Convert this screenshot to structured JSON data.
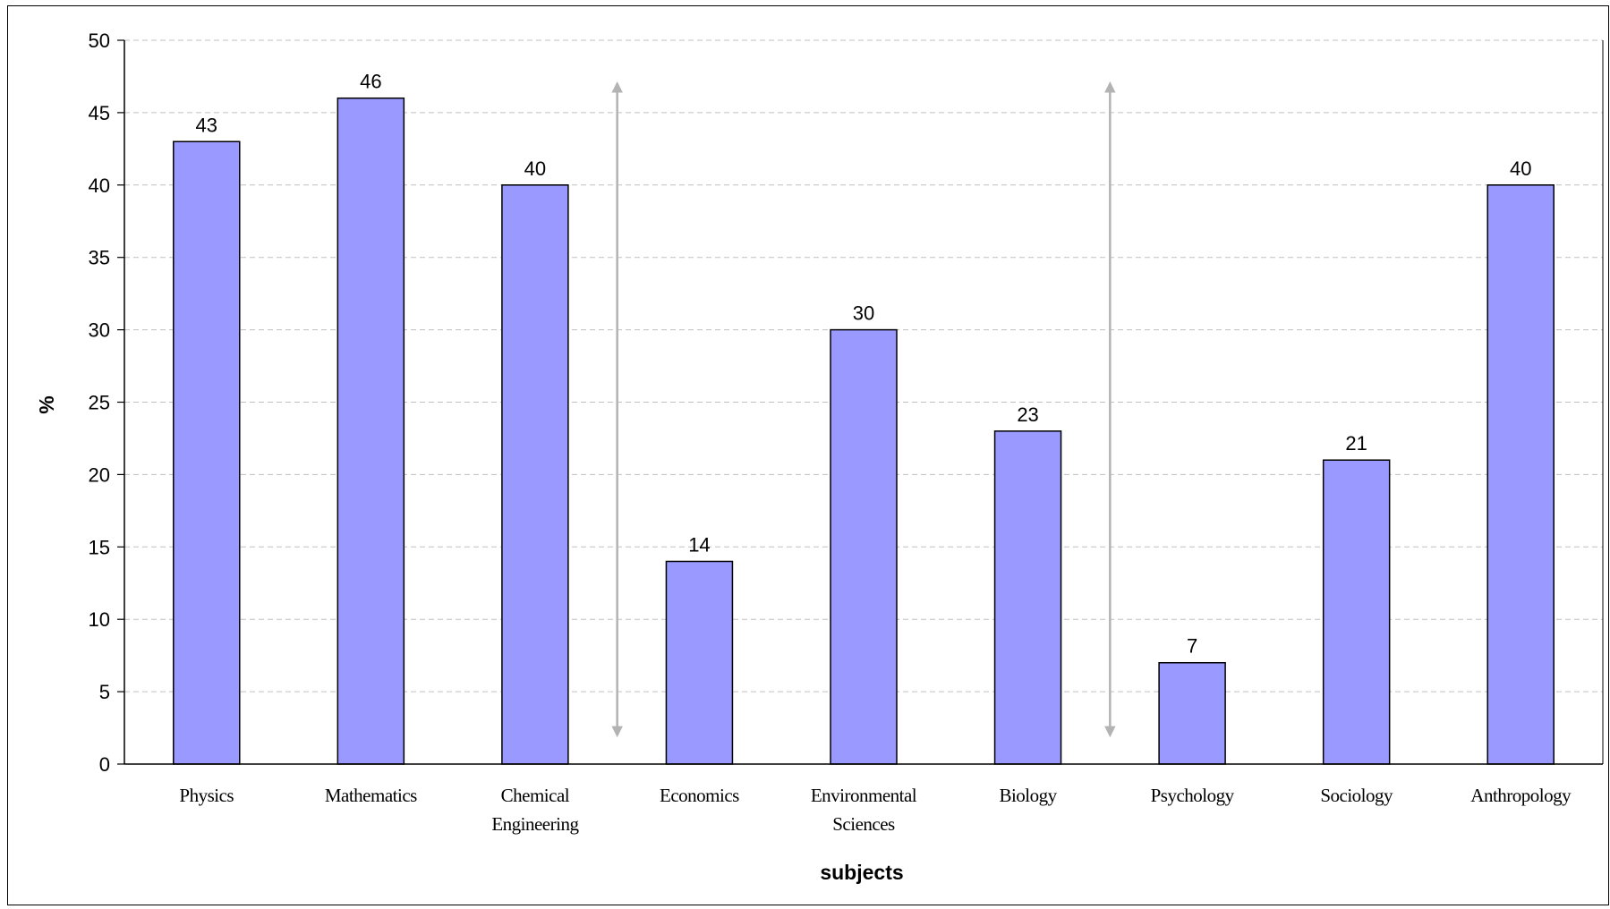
{
  "chart_data": {
    "type": "bar",
    "categories": [
      "Physics",
      "Mathematics",
      "Chemical Engineering",
      "Economics",
      "Environmental Sciences",
      "Biology",
      "Psychology",
      "Sociology",
      "Anthropology"
    ],
    "category_lines": [
      [
        "Physics"
      ],
      [
        "Mathematics"
      ],
      [
        "Chemical",
        "Engineering"
      ],
      [
        "Economics"
      ],
      [
        "Environmental",
        "Sciences"
      ],
      [
        "Biology"
      ],
      [
        "Psychology"
      ],
      [
        "Sociology"
      ],
      [
        "Anthropology"
      ]
    ],
    "values": [
      43,
      46,
      40,
      14,
      30,
      23,
      7,
      21,
      40
    ],
    "xlabel": "subjects",
    "ylabel": "%",
    "ylim": [
      0,
      50
    ],
    "yticks": [
      0,
      5,
      10,
      15,
      20,
      25,
      30,
      35,
      40,
      45,
      50
    ],
    "grid": "horizontal dashed",
    "data_labels": true,
    "annotations": [
      {
        "type": "double-arrow",
        "between": [
          "Chemical Engineering",
          "Economics"
        ],
        "y_range": [
          2,
          47
        ]
      },
      {
        "type": "double-arrow",
        "between": [
          "Biology",
          "Psychology"
        ],
        "y_range": [
          2,
          47
        ]
      }
    ],
    "colors": {
      "bar_fill": "#9999ff",
      "bar_stroke": "#000000",
      "grid": "#c0c0c0",
      "arrow": "#b3b3b3"
    }
  }
}
